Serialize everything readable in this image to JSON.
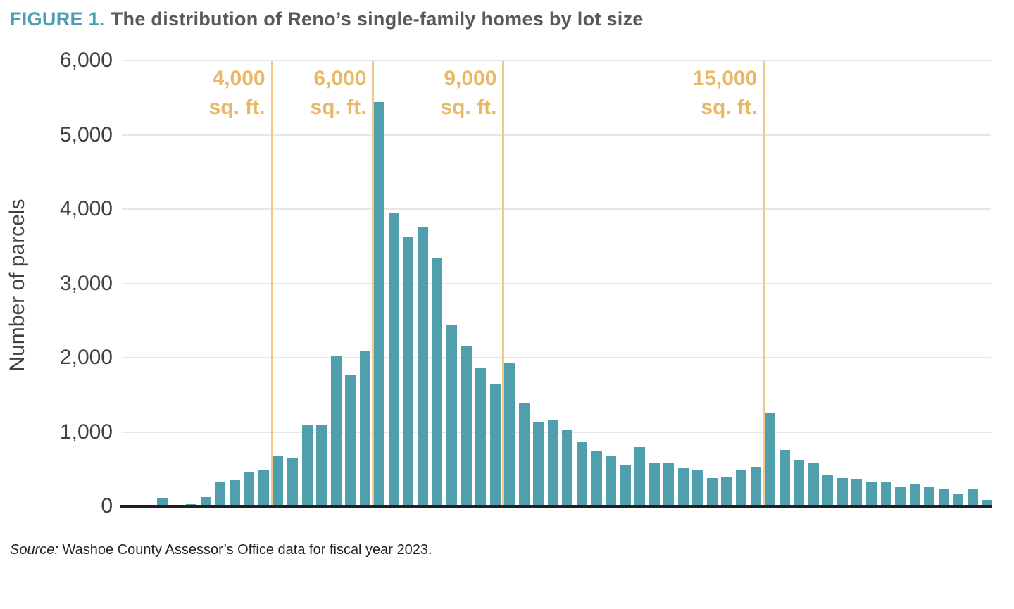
{
  "figure": {
    "label": "FIGURE 1.",
    "title": "The distribution of Reno’s single-family homes by lot size"
  },
  "source": {
    "prefix": "Source:",
    "text": " Washoe County Assessor’s Office data for fiscal year 2023."
  },
  "chart_data": {
    "type": "bar",
    "title": "The distribution of Reno’s single-family homes by lot size",
    "xlabel": "",
    "ylabel": "Number of parcels",
    "ylim": [
      0,
      6000
    ],
    "ytick_interval": 1000,
    "ytick_labels": [
      "6,000",
      "5,000",
      "4,000",
      "3,000",
      "2,000",
      "1,000",
      "0"
    ],
    "grid": true,
    "legend": "none",
    "values": [
      110,
      8,
      30,
      120,
      330,
      350,
      460,
      480,
      670,
      655,
      1090,
      1090,
      2020,
      1760,
      2090,
      5440,
      3940,
      3630,
      3750,
      3350,
      2440,
      2150,
      1860,
      1650,
      1930,
      1390,
      1130,
      1170,
      1020,
      860,
      750,
      680,
      560,
      800,
      590,
      580,
      510,
      490,
      380,
      390,
      480,
      530,
      1250,
      760,
      620,
      590,
      430,
      380,
      370,
      320,
      320,
      260,
      290,
      260,
      230,
      170,
      240,
      90
    ],
    "reference_lines": [
      {
        "label_line1": "4,000",
        "label_line2": "sq. ft.",
        "before_bar_index": 8
      },
      {
        "label_line1": "6,000",
        "label_line2": "sq. ft.",
        "before_bar_index": 15
      },
      {
        "label_line1": "9,000",
        "label_line2": "sq. ft.",
        "before_bar_index": 24
      },
      {
        "label_line1": "15,000",
        "label_line2": "sq. ft.",
        "before_bar_index": 42
      }
    ],
    "colors": {
      "bar": "#4FA0AC",
      "reference_line": "#F2C98A",
      "reference_label": "#E9B765",
      "grid_line": "#E6E6E6",
      "axis_line": "#232021",
      "axis_text": "#414042",
      "title_accent": "#4B9FB5",
      "title_text": "#58595B",
      "source_text": "#231F20"
    }
  }
}
